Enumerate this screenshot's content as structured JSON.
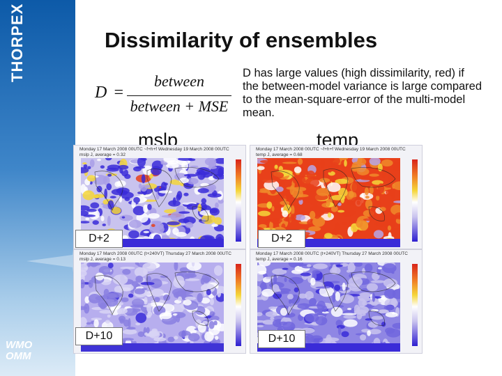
{
  "sidebar": {
    "brand": "THORPEX",
    "org_line1": "WMO",
    "org_line2": "OMM"
  },
  "slide": {
    "title": "Dissimilarity of ensembles",
    "formula": {
      "lhs": "D",
      "equals": "=",
      "numerator": "between",
      "denominator": "between + MSE"
    },
    "description": "D has large values (high dissimilarity, red) if the between-model variance is large compared to the mean-square-error of the multi-model mean.",
    "columns": [
      "mslp",
      "temp"
    ]
  },
  "panels": [
    {
      "head1": "Monday 17 March 2008 00UTC ~f+h+f Wednesday 19 March 2008 00UTC",
      "head2": "mslp J, average = 0.32",
      "day": "D+2",
      "style": "mslp_d2"
    },
    {
      "head1": "Monday 17 March 2008 00UTC ~f+h+f Wednesday 19 March 2008 00UTC",
      "head2": "temp J, average = 0.68",
      "day": "D+2",
      "style": "temp_d2"
    },
    {
      "head1": "Monday 17 March 2008 00UTC (t+240VT) Thursday 27 March 2008 00UTC",
      "head2": "mslp J, average = 0.13",
      "day": "D+10",
      "style": "mslp_d10"
    },
    {
      "head1": "Monday 17 March 2008 00UTC (t+240VT) Thursday 27 March 2008 00UTC",
      "head2": "temp J, average = 0.16",
      "day": "D+10",
      "style": "temp_d10"
    }
  ],
  "colors": {
    "sidebar_top": "#0d5aa8",
    "sidebar_bottom": "#dcebf7",
    "map_high": "#e8401a",
    "map_mid": "#f5d63a",
    "map_low": "#3a2bd8",
    "map_base": "#c9c3ee"
  }
}
